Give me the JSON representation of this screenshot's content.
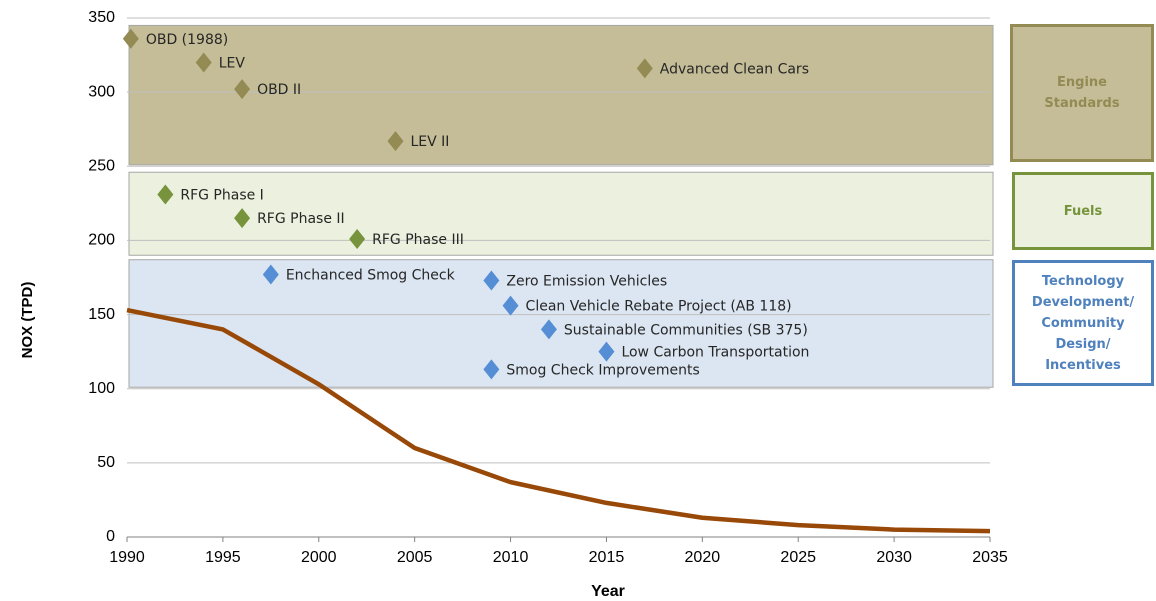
{
  "chart_data": {
    "type": "line",
    "x_label": "Year",
    "y_label": "NOX (TPD)",
    "x": [
      1990,
      1995,
      2000,
      2005,
      2010,
      2015,
      2020,
      2025,
      2030,
      2035
    ],
    "series": [
      {
        "color": "#984807",
        "values": [
          153,
          140,
          103,
          60,
          37,
          23,
          13,
          8,
          5,
          4
        ]
      }
    ],
    "xlim": [
      1990,
      2035
    ],
    "xticks": [
      1990,
      1995,
      2000,
      2005,
      2010,
      2015,
      2020,
      2025,
      2030,
      2035
    ],
    "ylim": [
      0,
      350
    ],
    "yticks": [
      0,
      50,
      100,
      150,
      200,
      250,
      300,
      350
    ],
    "grid": true,
    "groups": [
      {
        "name": "Engine Standards",
        "color": "#948a54",
        "band_color": "#c4bd97",
        "box_color": "#c4bd97",
        "text_color": "#948a54",
        "band": [
          251,
          345
        ],
        "points": [
          {
            "label": "OBD (1988)",
            "x": 1990.2,
            "y": 336
          },
          {
            "label": "LEV",
            "x": 1994,
            "y": 320
          },
          {
            "label": "OBD II",
            "x": 1996,
            "y": 302
          },
          {
            "label": "LEV II",
            "x": 2004,
            "y": 267
          },
          {
            "label": "Advanced Clean Cars",
            "x": 2017,
            "y": 316
          }
        ]
      },
      {
        "name": "Fuels",
        "color": "#77933c",
        "band_color": "#ebf1de",
        "box_color": "#ebf1de",
        "text_color": "#77933c",
        "band": [
          190,
          246
        ],
        "points": [
          {
            "label": "RFG Phase I",
            "x": 1992,
            "y": 231
          },
          {
            "label": "RFG Phase II",
            "x": 1996,
            "y": 215
          },
          {
            "label": "RFG Phase III",
            "x": 2002,
            "y": 201
          }
        ]
      },
      {
        "name": "Technology Development/ Community Design/ Incentives",
        "color": "#558ed5",
        "band_color": "#dce6f2",
        "box_color": "#ffffff",
        "text_color": "#4f81bd",
        "band": [
          101,
          187
        ],
        "points": [
          {
            "label": "Enchanced Smog Check",
            "x": 1997.5,
            "y": 177
          },
          {
            "label": "Zero Emission Vehicles",
            "x": 2009,
            "y": 173
          },
          {
            "label": "Clean Vehicle Rebate Project (AB 118)",
            "x": 2010,
            "y": 156
          },
          {
            "label": "Sustainable Communities (SB 375)",
            "x": 2012,
            "y": 140
          },
          {
            "label": "Low Carbon Transportation",
            "x": 2015,
            "y": 125
          },
          {
            "label": "Smog Check Improvements",
            "x": 2009,
            "y": 113
          }
        ]
      }
    ]
  }
}
